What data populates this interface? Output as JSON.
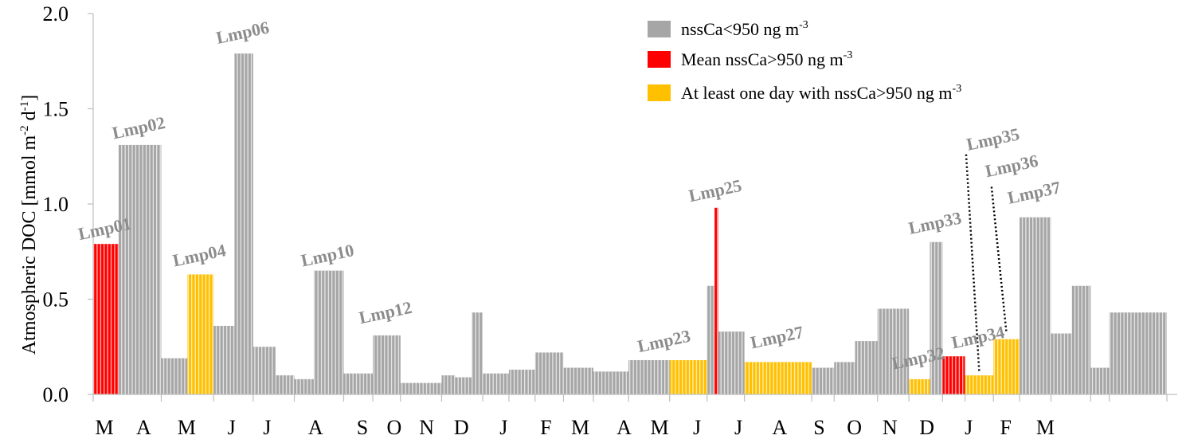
{
  "chart_data": {
    "type": "bar",
    "title": "",
    "xlabel": "",
    "ylabel": "Atmospheric DOC [mmol m-2 d-1]",
    "ylabel_parts": {
      "a": "Atmospheric DOC [mmol m",
      "b": "-2",
      "c": " d",
      "d": "-1",
      "e": "]"
    },
    "ylim": [
      0.0,
      2.0
    ],
    "yticks": [
      "0.0",
      "0.5",
      "1.0",
      "1.5",
      "2.0"
    ],
    "months": [
      "M",
      "A",
      "M",
      "J",
      "J",
      "A",
      "S",
      "O",
      "N",
      "D",
      "J",
      "F",
      "M",
      "A",
      "M",
      "J",
      "J",
      "A",
      "S",
      "O",
      "N",
      "D",
      "J",
      "F",
      "M"
    ],
    "colors": {
      "gray": "#a6a6a6",
      "red": "#ff0000",
      "yellow": "#ffc000",
      "stripe": "#ffffff"
    },
    "legend": [
      {
        "key": "gray",
        "a": "nssCa<950  ng m",
        "b": "-3"
      },
      {
        "key": "red",
        "a": "Mean nssCa>950  ng m",
        "b": "-3"
      },
      {
        "key": "yellow",
        "a": "At least one day with nssCa>950  ng m",
        "b": "-3"
      }
    ],
    "bars": [
      {
        "start": 0.0,
        "end": 0.68,
        "value": 0.79,
        "color": "red"
      },
      {
        "start": 0.68,
        "end": 1.82,
        "value": 1.31,
        "color": "gray"
      },
      {
        "start": 1.82,
        "end": 2.52,
        "value": 0.19,
        "color": "gray"
      },
      {
        "start": 2.52,
        "end": 3.22,
        "value": 0.63,
        "color": "yellow"
      },
      {
        "start": 3.22,
        "end": 3.78,
        "value": 0.36,
        "color": "gray"
      },
      {
        "start": 3.78,
        "end": 4.28,
        "value": 1.79,
        "color": "gray"
      },
      {
        "start": 4.28,
        "end": 4.88,
        "value": 0.25,
        "color": "gray"
      },
      {
        "start": 4.88,
        "end": 5.38,
        "value": 0.1,
        "color": "gray"
      },
      {
        "start": 5.38,
        "end": 5.9,
        "value": 0.08,
        "color": "gray"
      },
      {
        "start": 5.9,
        "end": 6.7,
        "value": 0.65,
        "color": "gray"
      },
      {
        "start": 6.7,
        "end": 7.48,
        "value": 0.11,
        "color": "gray"
      },
      {
        "start": 7.48,
        "end": 8.22,
        "value": 0.31,
        "color": "gray"
      },
      {
        "start": 8.22,
        "end": 9.32,
        "value": 0.06,
        "color": "gray"
      },
      {
        "start": 9.32,
        "end": 9.68,
        "value": 0.1,
        "color": "gray"
      },
      {
        "start": 9.68,
        "end": 10.12,
        "value": 0.09,
        "color": "gray"
      },
      {
        "start": 10.12,
        "end": 10.42,
        "value": 0.43,
        "color": "gray"
      },
      {
        "start": 10.42,
        "end": 11.12,
        "value": 0.11,
        "color": "gray"
      },
      {
        "start": 11.12,
        "end": 11.82,
        "value": 0.13,
        "color": "gray"
      },
      {
        "start": 11.82,
        "end": 12.58,
        "value": 0.22,
        "color": "gray"
      },
      {
        "start": 12.58,
        "end": 13.38,
        "value": 0.14,
        "color": "gray"
      },
      {
        "start": 13.38,
        "end": 14.32,
        "value": 0.12,
        "color": "gray"
      },
      {
        "start": 14.32,
        "end": 15.42,
        "value": 0.18,
        "color": "gray"
      },
      {
        "start": 15.42,
        "end": 16.42,
        "value": 0.18,
        "color": "yellow"
      },
      {
        "start": 16.42,
        "end": 16.62,
        "value": 0.57,
        "color": "gray"
      },
      {
        "start": 16.62,
        "end": 16.72,
        "value": 0.98,
        "color": "red"
      },
      {
        "start": 16.72,
        "end": 17.42,
        "value": 0.33,
        "color": "gray"
      },
      {
        "start": 17.42,
        "end": 19.22,
        "value": 0.17,
        "color": "yellow"
      },
      {
        "start": 19.22,
        "end": 19.82,
        "value": 0.14,
        "color": "gray"
      },
      {
        "start": 19.82,
        "end": 20.38,
        "value": 0.17,
        "color": "gray"
      },
      {
        "start": 20.38,
        "end": 20.98,
        "value": 0.28,
        "color": "gray"
      },
      {
        "start": 20.98,
        "end": 21.82,
        "value": 0.45,
        "color": "gray"
      },
      {
        "start": 21.82,
        "end": 22.38,
        "value": 0.08,
        "color": "yellow"
      },
      {
        "start": 22.38,
        "end": 22.72,
        "value": 0.8,
        "color": "gray"
      },
      {
        "start": 22.72,
        "end": 23.32,
        "value": 0.2,
        "color": "red"
      },
      {
        "start": 23.32,
        "end": 24.08,
        "value": 0.1,
        "color": "yellow"
      },
      {
        "start": 24.08,
        "end": 24.78,
        "value": 0.29,
        "color": "yellow"
      },
      {
        "start": 24.78,
        "end": 25.62,
        "value": 0.93,
        "color": "gray"
      },
      {
        "start": 25.62,
        "end": 26.18,
        "value": 0.32,
        "color": "gray"
      },
      {
        "start": 26.18,
        "end": 26.68,
        "value": 0.57,
        "color": "gray"
      },
      {
        "start": 26.68,
        "end": 27.18,
        "value": 0.14,
        "color": "gray"
      },
      {
        "start": 27.18,
        "end": 28.72,
        "value": 0.43,
        "color": "gray"
      }
    ],
    "x_total": 28.72,
    "month_positions": [
      0.3,
      1.35,
      2.5,
      3.7,
      4.65,
      5.95,
      7.2,
      8.05,
      8.92,
      9.85,
      10.98,
      12.11,
      13.03,
      14.2,
      15.15,
      16.15,
      17.26,
      18.36,
      19.42,
      20.36,
      21.31,
      22.3,
      23.42,
      24.41,
      25.47
    ],
    "sample_labels": [
      {
        "text": "Lmp01",
        "x": 0.34,
        "value": 0.84
      },
      {
        "text": "Lmp02",
        "x": 1.25,
        "value": 1.37
      },
      {
        "text": "Lmp04",
        "x": 2.87,
        "value": 0.7
      },
      {
        "text": "Lmp06",
        "x": 4.03,
        "value": 1.87
      },
      {
        "text": "Lmp10",
        "x": 6.3,
        "value": 0.7
      },
      {
        "text": "Lmp12",
        "x": 7.85,
        "value": 0.4
      },
      {
        "text": "Lmp23",
        "x": 15.3,
        "value": 0.25
      },
      {
        "text": "Lmp25",
        "x": 16.67,
        "value": 1.04
      },
      {
        "text": "Lmp27",
        "x": 18.32,
        "value": 0.27
      },
      {
        "text": "Lmp32",
        "x": 22.1,
        "value": 0.16
      },
      {
        "text": "Lmp33",
        "x": 22.55,
        "value": 0.87
      },
      {
        "text": "Lmp34",
        "x": 23.7,
        "value": 0.27
      },
      {
        "text": "Lmp35",
        "x": 24.1,
        "value": 1.31
      },
      {
        "text": "Lmp36",
        "x": 24.6,
        "value": 1.17
      },
      {
        "text": "Lmp37",
        "x": 25.2,
        "value": 1.03
      }
    ],
    "leader_lines": [
      {
        "x1": 23.35,
        "y1": 1.26,
        "x2": 23.7,
        "y2": 0.12
      },
      {
        "x1": 24.03,
        "y1": 1.09,
        "x2": 24.43,
        "y2": 0.32
      }
    ]
  }
}
